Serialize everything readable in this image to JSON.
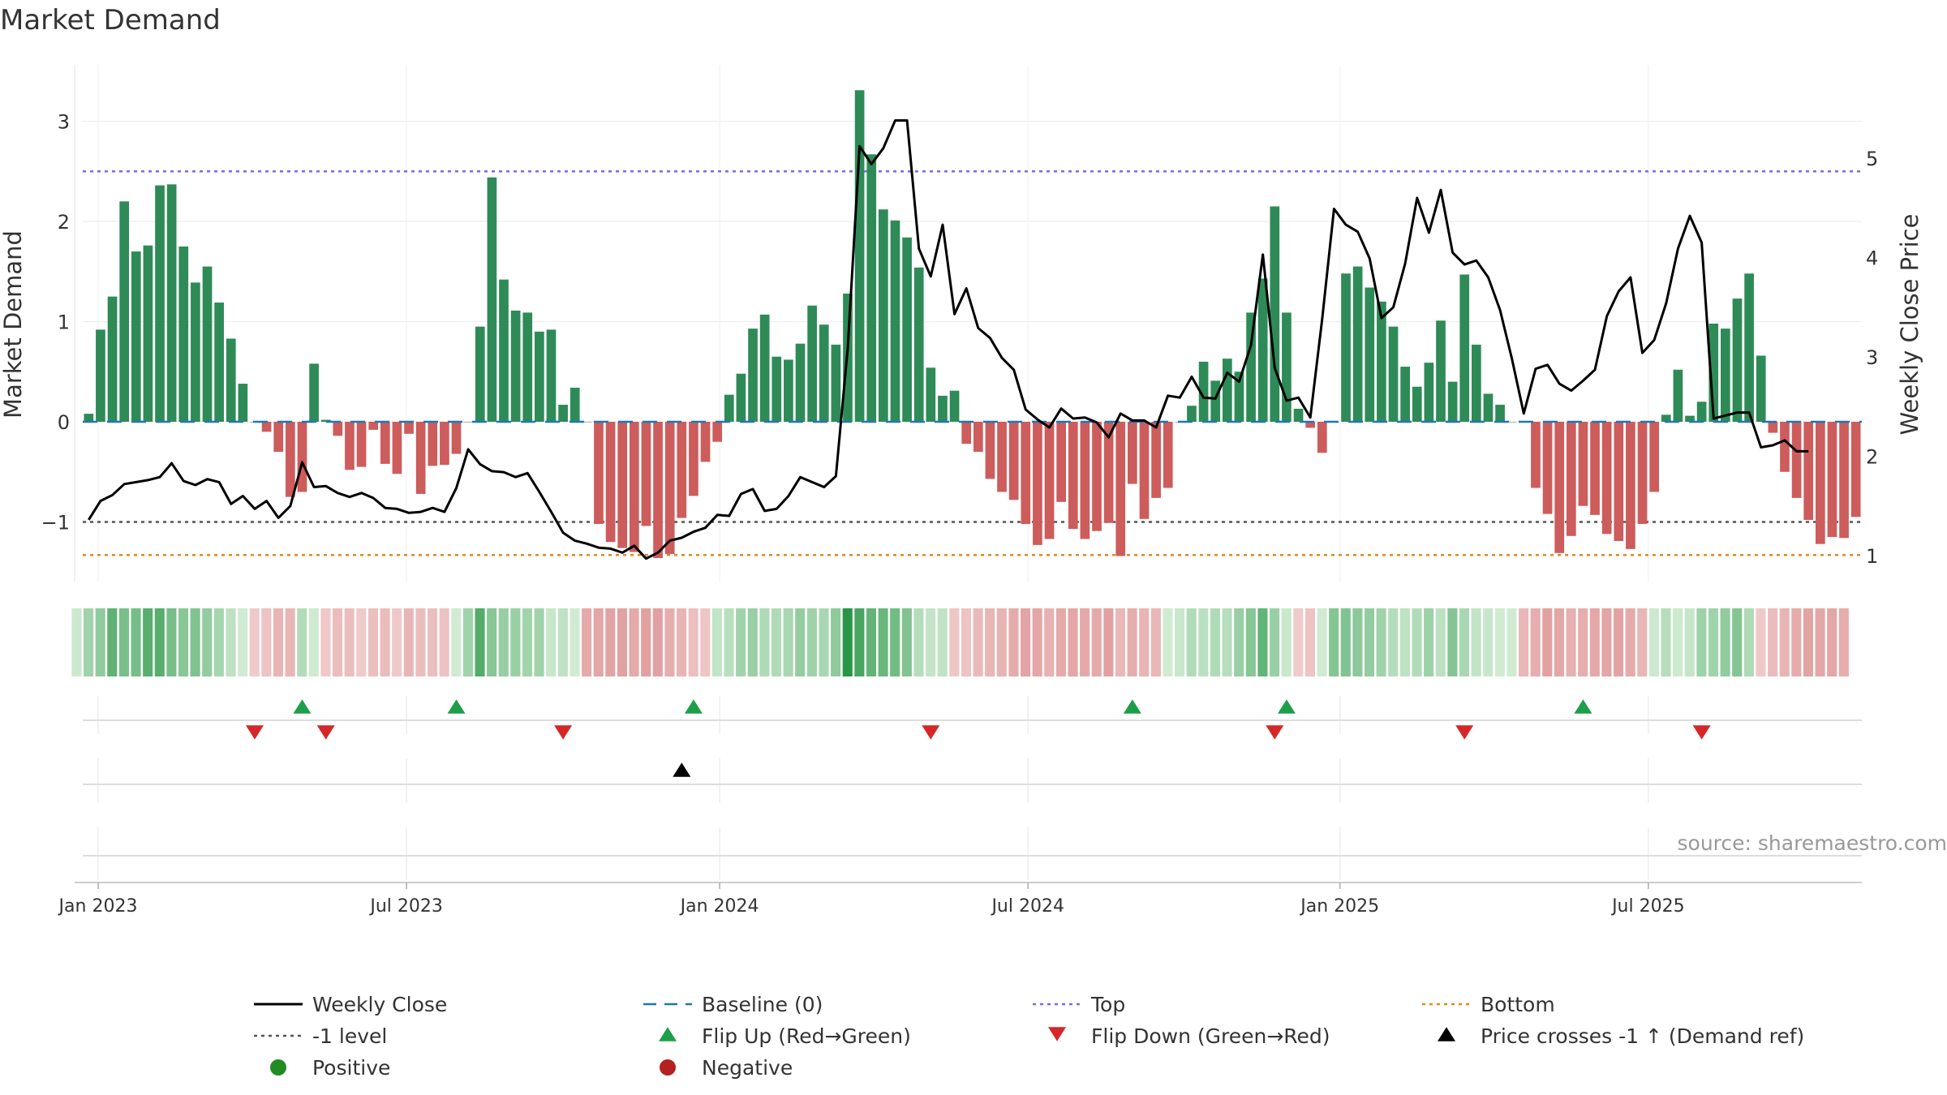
{
  "chart_data": {
    "type": "bar",
    "title": "Market Demand",
    "ylabel_left": "Market Demand",
    "ylabel_right": "Weekly Close Price",
    "source": "source: sharemaestro.com",
    "left_axis": {
      "ylim": [
        -1.6,
        3.5
      ],
      "ticks": [
        -1,
        0,
        1,
        2,
        3
      ],
      "tick_labels": [
        "−1",
        "0",
        "1",
        "2",
        "3"
      ]
    },
    "right_axis": {
      "ylim": [
        0.5,
        6.0
      ],
      "ticks": [
        1,
        2,
        3,
        4,
        5
      ],
      "tick_labels": [
        "1",
        "2",
        "3",
        "4",
        "5"
      ]
    },
    "x_ticks": [
      {
        "label": "Jan 2023",
        "week": 1.3
      },
      {
        "label": "Jul 2023",
        "week": 27.3
      },
      {
        "label": "Jan 2024",
        "week": 53.7
      },
      {
        "label": "Jul 2024",
        "week": 79.7
      },
      {
        "label": "Jan 2025",
        "week": 106.0
      },
      {
        "label": "Jul 2025",
        "week": 132.0
      }
    ],
    "reference_lines": {
      "top": 2.5,
      "minus_one": -1,
      "bottom": -1.33,
      "baseline": 0
    },
    "colors": {
      "positive_bar": "#2e8b57",
      "negative_bar": "#cd5c5c",
      "price_line": "#000000",
      "baseline": "#1f77b4",
      "top": "#7b68ee",
      "minus_one": "#555555",
      "bottom": "#e08a1e",
      "flip_up": "#1e9e4a",
      "flip_down": "#d62728",
      "cross": "#000000",
      "positive_dot": "#228b22",
      "negative_dot": "#b22222"
    },
    "demand": [
      0.08,
      0.92,
      1.25,
      2.2,
      1.7,
      1.76,
      2.36,
      2.37,
      1.75,
      1.39,
      1.55,
      1.19,
      0.83,
      0.38,
      0.0,
      -0.1,
      -0.3,
      -0.75,
      -0.7,
      0.58,
      0.02,
      -0.14,
      -0.48,
      -0.45,
      -0.08,
      -0.42,
      -0.52,
      -0.12,
      -0.72,
      -0.44,
      -0.43,
      -0.32,
      0.0,
      0.95,
      2.44,
      1.42,
      1.11,
      1.09,
      0.9,
      0.92,
      0.17,
      0.34,
      0.0,
      -1.02,
      -1.2,
      -1.26,
      -1.3,
      -1.04,
      -1.36,
      -1.32,
      -0.96,
      -0.74,
      -0.4,
      -0.2,
      0.27,
      0.48,
      0.93,
      1.07,
      0.65,
      0.62,
      0.78,
      1.16,
      0.97,
      0.77,
      1.28,
      3.31,
      2.67,
      2.12,
      2.01,
      1.84,
      1.54,
      0.54,
      0.26,
      0.31,
      -0.22,
      -0.3,
      -0.57,
      -0.7,
      -0.78,
      -1.02,
      -1.23,
      -1.17,
      -0.8,
      -1.07,
      -1.17,
      -1.09,
      -1.01,
      -1.34,
      -0.62,
      -0.97,
      -0.76,
      -0.66,
      0.0,
      0.16,
      0.6,
      0.41,
      0.63,
      0.5,
      1.09,
      1.43,
      2.15,
      1.09,
      0.13,
      -0.06,
      -0.31,
      0.0,
      1.48,
      1.55,
      1.34,
      1.2,
      0.95,
      0.55,
      0.35,
      0.59,
      1.01,
      0.4,
      1.47,
      0.77,
      0.28,
      0.17,
      0.0,
      0.0,
      -0.66,
      -0.92,
      -1.31,
      -1.14,
      -0.84,
      -0.93,
      -1.12,
      -1.19,
      -1.27,
      -1.02,
      -0.7,
      0.07,
      0.52,
      0.06,
      0.2,
      0.98,
      0.93,
      1.23,
      1.48,
      0.66,
      -0.11,
      -0.5,
      -0.76,
      -0.98,
      -1.22,
      -1.15,
      -1.16,
      -0.95
    ],
    "price": [
      1.36,
      1.55,
      1.61,
      1.72,
      1.74,
      1.76,
      1.79,
      1.93,
      1.75,
      1.71,
      1.77,
      1.74,
      1.52,
      1.6,
      1.47,
      1.55,
      1.38,
      1.5,
      1.94,
      1.69,
      1.7,
      1.63,
      1.59,
      1.63,
      1.58,
      1.48,
      1.47,
      1.43,
      1.44,
      1.48,
      1.44,
      1.68,
      2.07,
      1.92,
      1.85,
      1.84,
      1.79,
      1.83,
      1.64,
      1.44,
      1.23,
      1.15,
      1.12,
      1.08,
      1.07,
      1.03,
      1.1,
      0.97,
      1.03,
      1.15,
      1.18,
      1.24,
      1.28,
      1.41,
      1.4,
      1.62,
      1.67,
      1.45,
      1.47,
      1.6,
      1.79,
      1.74,
      1.69,
      1.8,
      3.09,
      5.12,
      4.94,
      5.1,
      5.38,
      5.38,
      4.09,
      3.81,
      4.33,
      3.43,
      3.69,
      3.29,
      3.19,
      2.99,
      2.87,
      2.47,
      2.37,
      2.29,
      2.48,
      2.38,
      2.39,
      2.34,
      2.19,
      2.43,
      2.36,
      2.36,
      2.29,
      2.61,
      2.59,
      2.8,
      2.59,
      2.58,
      2.84,
      2.75,
      3.12,
      4.03,
      2.89,
      2.56,
      2.59,
      2.39,
      3.38,
      4.49,
      4.33,
      4.26,
      3.99,
      3.39,
      3.5,
      3.94,
      4.6,
      4.25,
      4.68,
      4.05,
      3.93,
      3.97,
      3.8,
      3.47,
      2.98,
      2.43,
      2.88,
      2.92,
      2.73,
      2.66,
      2.76,
      2.87,
      3.41,
      3.66,
      3.8,
      3.04,
      3.17,
      3.54,
      4.09,
      4.42,
      4.15,
      2.38,
      2.41,
      2.44,
      2.44,
      2.09,
      2.11,
      2.16,
      2.05,
      2.05
    ],
    "heat_labels": [],
    "flip_up": [
      18.5,
      31.5,
      51.5,
      88.5,
      101.5,
      126.5
    ],
    "flip_down": [
      14.5,
      20.5,
      40.5,
      71.5,
      100.5,
      116.5,
      136.5
    ],
    "price_cross_up": [
      50.5
    ],
    "legend": [
      {
        "label": "Weekly Close",
        "symbol": "line-solid"
      },
      {
        "label": "Baseline (0)",
        "symbol": "line-dash"
      },
      {
        "label": "Top",
        "symbol": "line-dot-purple"
      },
      {
        "label": "Bottom",
        "symbol": "line-dot-orange"
      },
      {
        "label": "-1 level",
        "symbol": "line-dot-gray"
      },
      {
        "label": "Flip Up (Red→Green)",
        "symbol": "tri-up-green"
      },
      {
        "label": "Flip Down (Green→Red)",
        "symbol": "tri-down-red"
      },
      {
        "label": "Price crosses -1 ↑ (Demand ref)",
        "symbol": "tri-up-black"
      },
      {
        "label": "Positive",
        "symbol": "dot-green"
      },
      {
        "label": "Negative",
        "symbol": "dot-red"
      }
    ]
  }
}
